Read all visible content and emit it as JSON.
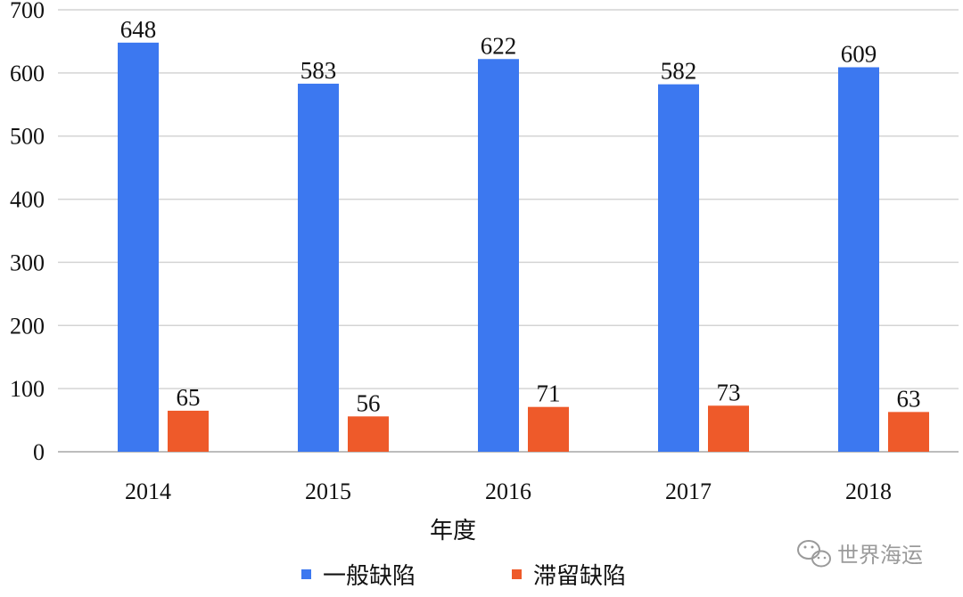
{
  "chart_data": {
    "type": "bar",
    "title": "",
    "xlabel": "年度",
    "ylabel": "",
    "categories": [
      "2014",
      "2015",
      "2016",
      "2017",
      "2018"
    ],
    "series": [
      {
        "name": "一般缺陷",
        "values": [
          648,
          583,
          622,
          582,
          609
        ],
        "color": "#3C78F0"
      },
      {
        "name": "滞留缺陷",
        "values": [
          65,
          56,
          71,
          73,
          63
        ],
        "color": "#EE5A2A"
      }
    ],
    "ylim": [
      0,
      700
    ],
    "yticks": [
      0,
      100,
      200,
      300,
      400,
      500,
      600,
      700
    ],
    "grid": true,
    "legend_position": "bottom"
  },
  "watermark": {
    "text": "世界海运",
    "icon": "wechat-icon"
  }
}
